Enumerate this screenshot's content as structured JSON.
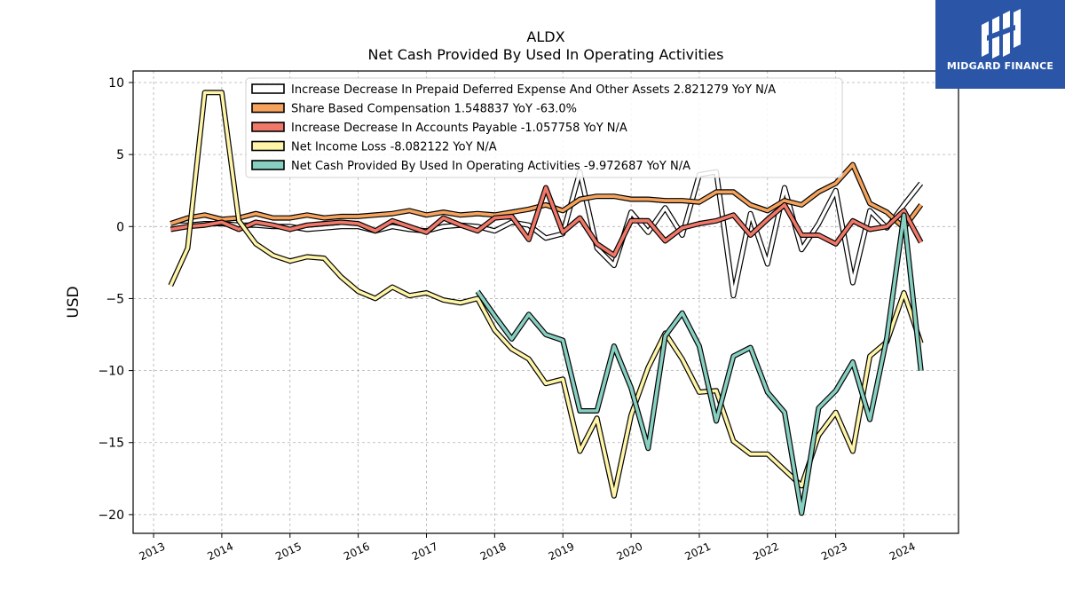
{
  "title": "ALDX",
  "subtitle": "Net Cash Provided By Used In Operating Activities",
  "watermark": {
    "text": "MIDGARD FINANCE",
    "bg": "#2b56a8"
  },
  "chart_data": {
    "type": "line",
    "ylabel": "USD",
    "ylim": [
      -21.3,
      10.8
    ],
    "xlim": [
      2012.7,
      2024.8
    ],
    "yticks": [
      10,
      5,
      0,
      -5,
      -10,
      -15,
      -20
    ],
    "ytick_labels": [
      "10",
      "5",
      "0",
      "−5",
      "−10",
      "−15",
      "−20"
    ],
    "xticks": [
      "2013",
      "2014",
      "2015",
      "2016",
      "2017",
      "2018",
      "2019",
      "2020",
      "2021",
      "2022",
      "2023",
      "2024"
    ],
    "grid": true,
    "legend_position": "top-center",
    "series": [
      {
        "name": "Increase Decrease In Prepaid Deferred Expense And Other Assets",
        "legend": "Increase Decrease In Prepaid Deferred Expense And Other Assets  2.821279 YoY N/A",
        "color": "#ffffff",
        "x": [
          2013.25,
          2013.5,
          2013.75,
          2014.0,
          2014.25,
          2014.5,
          2014.75,
          2015.0,
          2015.25,
          2015.5,
          2015.75,
          2016.0,
          2016.25,
          2016.5,
          2016.75,
          2017.0,
          2017.25,
          2017.5,
          2017.75,
          2018.0,
          2018.25,
          2018.5,
          2018.75,
          2019.0,
          2019.25,
          2019.5,
          2019.75,
          2020.0,
          2020.25,
          2020.5,
          2020.75,
          2021.0,
          2021.25,
          2021.5,
          2021.75,
          2022.0,
          2022.25,
          2022.5,
          2022.75,
          2023.0,
          2023.25,
          2023.5,
          2023.75,
          2024.0,
          2024.25
        ],
        "values": [
          0.1,
          0.1,
          0.2,
          0.2,
          0.1,
          0.1,
          0.0,
          0.0,
          -0.2,
          -0.1,
          0.0,
          0.0,
          -0.3,
          0.0,
          -0.2,
          -0.3,
          0.0,
          0.1,
          0.0,
          -0.3,
          0.3,
          0.1,
          -0.8,
          -0.5,
          3.8,
          -1.5,
          -2.7,
          1.0,
          -0.4,
          1.3,
          -0.6,
          3.6,
          3.8,
          -4.8,
          0.9,
          -2.6,
          2.7,
          -1.6,
          0.2,
          2.5,
          -3.9,
          1.1,
          -0.1,
          1.5,
          3.0
        ]
      },
      {
        "name": "Share Based Compensation",
        "legend": "Share Based Compensation  1.548837 YoY -63.0%",
        "color": "#f5a35c",
        "x": [
          2013.25,
          2013.5,
          2013.75,
          2014.0,
          2014.25,
          2014.5,
          2014.75,
          2015.0,
          2015.25,
          2015.5,
          2015.75,
          2016.0,
          2016.25,
          2016.5,
          2016.75,
          2017.0,
          2017.25,
          2017.5,
          2017.75,
          2018.0,
          2018.25,
          2018.5,
          2018.75,
          2019.0,
          2019.25,
          2019.5,
          2019.75,
          2020.0,
          2020.25,
          2020.5,
          2020.75,
          2021.0,
          2021.25,
          2021.5,
          2021.75,
          2022.0,
          2022.25,
          2022.5,
          2022.75,
          2023.0,
          2023.25,
          2023.5,
          2023.75,
          2024.0,
          2024.25
        ],
        "values": [
          0.2,
          0.6,
          0.8,
          0.5,
          0.6,
          0.9,
          0.6,
          0.6,
          0.8,
          0.6,
          0.7,
          0.7,
          0.8,
          0.9,
          1.1,
          0.8,
          1.0,
          0.8,
          0.9,
          0.8,
          1.0,
          1.2,
          1.5,
          1.1,
          1.9,
          2.1,
          2.1,
          1.9,
          1.9,
          1.8,
          1.8,
          1.7,
          2.4,
          2.4,
          1.5,
          1.1,
          1.8,
          1.5,
          2.4,
          3.0,
          4.3,
          1.6,
          1.0,
          -0.1,
          1.5
        ]
      },
      {
        "name": "Increase Decrease In Accounts Payable",
        "legend": "Increase Decrease In Accounts Payable  -1.057758 YoY N/A",
        "color": "#f07868",
        "x": [
          2013.25,
          2013.5,
          2013.75,
          2014.0,
          2014.25,
          2014.5,
          2014.75,
          2015.0,
          2015.25,
          2015.5,
          2015.75,
          2016.0,
          2016.25,
          2016.5,
          2016.75,
          2017.0,
          2017.25,
          2017.5,
          2017.75,
          2018.0,
          2018.25,
          2018.5,
          2018.75,
          2019.0,
          2019.25,
          2019.5,
          2019.75,
          2020.0,
          2020.25,
          2020.5,
          2020.75,
          2021.0,
          2021.25,
          2021.5,
          2021.75,
          2022.0,
          2022.25,
          2022.5,
          2022.75,
          2023.0,
          2023.25,
          2023.5,
          2023.75,
          2024.0,
          2024.25
        ],
        "values": [
          -0.2,
          0.0,
          0.1,
          0.3,
          -0.2,
          0.3,
          0.1,
          -0.2,
          0.1,
          0.2,
          0.3,
          0.2,
          -0.3,
          0.4,
          0.0,
          -0.4,
          0.6,
          0.1,
          -0.3,
          0.6,
          0.7,
          -0.9,
          2.7,
          -0.4,
          0.6,
          -1.2,
          -2.0,
          0.4,
          0.4,
          -1.0,
          -0.1,
          0.2,
          0.4,
          0.8,
          -0.6,
          0.5,
          1.5,
          -0.6,
          -0.6,
          -1.2,
          0.4,
          -0.2,
          0.0,
          1.1,
          -1.1
        ]
      },
      {
        "name": "Net Income Loss",
        "legend": "Net Income Loss  -8.082122 YoY N/A",
        "color": "#fff5a8",
        "x": [
          2013.25,
          2013.5,
          2013.75,
          2014.0,
          2014.25,
          2014.5,
          2014.75,
          2015.0,
          2015.25,
          2015.5,
          2015.75,
          2016.0,
          2016.25,
          2016.5,
          2016.75,
          2017.0,
          2017.25,
          2017.5,
          2017.75,
          2018.0,
          2018.25,
          2018.5,
          2018.75,
          2019.0,
          2019.25,
          2019.5,
          2019.75,
          2020.0,
          2020.25,
          2020.5,
          2020.75,
          2021.0,
          2021.25,
          2021.5,
          2021.75,
          2022.0,
          2022.25,
          2022.5,
          2022.75,
          2023.0,
          2023.25,
          2023.5,
          2023.75,
          2024.0,
          2024.25
        ],
        "values": [
          -4.1,
          -1.5,
          9.3,
          9.3,
          0.4,
          -1.2,
          -2.0,
          -2.4,
          -2.1,
          -2.2,
          -3.5,
          -4.5,
          -5.0,
          -4.2,
          -4.8,
          -4.6,
          -5.1,
          -5.3,
          -5.0,
          -7.2,
          -8.5,
          -9.2,
          -10.9,
          -10.6,
          -15.6,
          -13.3,
          -18.7,
          -13.1,
          -9.8,
          -7.4,
          -9.2,
          -11.5,
          -11.4,
          -14.9,
          -15.8,
          -15.8,
          -16.9,
          -18.0,
          -14.5,
          -12.9,
          -15.6,
          -9.0,
          -8.0,
          -4.6,
          -8.1
        ]
      },
      {
        "name": "Net Cash Provided By Used In Operating Activities",
        "legend": "Net Cash Provided By Used In Operating Activities  -9.972687 YoY N/A",
        "color": "#86cfc1",
        "x": [
          2017.75,
          2018.0,
          2018.25,
          2018.5,
          2018.75,
          2019.0,
          2019.25,
          2019.5,
          2019.75,
          2020.0,
          2020.25,
          2020.5,
          2020.75,
          2021.0,
          2021.25,
          2021.5,
          2021.75,
          2022.0,
          2022.25,
          2022.5,
          2022.75,
          2023.0,
          2023.25,
          2023.5,
          2023.75,
          2024.0,
          2024.25
        ],
        "values": [
          -4.5,
          -6.2,
          -7.8,
          -6.1,
          -7.5,
          -7.9,
          -12.8,
          -12.8,
          -8.3,
          -11.2,
          -15.4,
          -7.6,
          -6.0,
          -8.3,
          -13.5,
          -9.0,
          -8.4,
          -11.5,
          -12.9,
          -19.9,
          -12.6,
          -11.4,
          -9.4,
          -13.4,
          -7.7,
          0.8,
          -10.0
        ]
      }
    ]
  }
}
